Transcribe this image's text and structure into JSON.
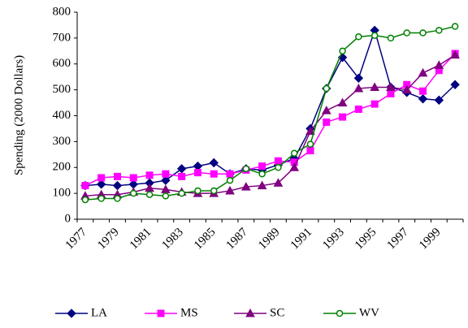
{
  "chart_data": {
    "type": "line",
    "y_label": "Spending (2000 Dollars)",
    "categories": [
      "1977",
      null,
      "1979",
      null,
      "1981",
      null,
      "1983",
      null,
      "1985",
      null,
      "1987",
      null,
      "1989",
      null,
      "1991",
      null,
      "1993",
      null,
      "1995",
      null,
      "1997",
      null,
      "1999",
      null
    ],
    "series": [
      {
        "name": "LA",
        "color": "#000080",
        "marker": "diamond",
        "values": [
          130,
          135,
          130,
          135,
          140,
          150,
          195,
          205,
          218,
          175,
          195,
          190,
          210,
          235,
          350,
          505,
          625,
          545,
          730,
          510,
          490,
          465,
          460,
          520
        ]
      },
      {
        "name": "MS",
        "color": "#ff00ff",
        "marker": "square",
        "values": [
          130,
          160,
          165,
          160,
          170,
          175,
          165,
          180,
          175,
          175,
          190,
          205,
          225,
          220,
          265,
          375,
          395,
          425,
          445,
          485,
          520,
          495,
          575,
          640
        ]
      },
      {
        "name": "SC",
        "color": "#800080",
        "marker": "triangle",
        "values": [
          90,
          95,
          95,
          105,
          120,
          115,
          105,
          100,
          100,
          110,
          125,
          130,
          140,
          200,
          340,
          420,
          450,
          505,
          510,
          510,
          500,
          565,
          595,
          635
        ]
      },
      {
        "name": "WV",
        "color": "#008000",
        "marker": "circle",
        "values": [
          75,
          80,
          80,
          100,
          95,
          90,
          100,
          110,
          110,
          150,
          195,
          175,
          200,
          255,
          290,
          505,
          650,
          705,
          710,
          700,
          720,
          720,
          730,
          745
        ]
      }
    ],
    "ylim": [
      0,
      800
    ],
    "yticks": [
      0,
      100,
      200,
      300,
      400,
      500,
      600,
      700,
      800
    ],
    "grid": false,
    "legend": "bottom"
  }
}
